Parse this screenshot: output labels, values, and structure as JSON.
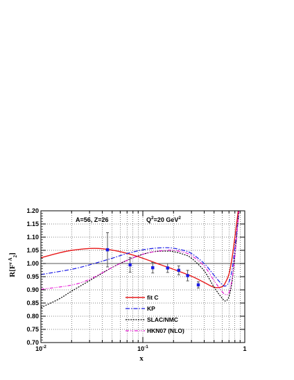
{
  "chart_data": {
    "type": "line",
    "xlabel": "x",
    "ylabel_parts": {
      "main": "R[F",
      "sub": "2",
      "sup": "ν A",
      "end": "]"
    },
    "x_scale": "log",
    "xlim": [
      0.01,
      1
    ],
    "ylim": [
      0.7,
      1.2
    ],
    "grid": true,
    "reference_line": 1.0,
    "y_ticks": [
      "0.70",
      "0.75",
      "0.80",
      "0.85",
      "0.90",
      "0.95",
      "1.00",
      "1.05",
      "1.10",
      "1.15",
      "1.20"
    ],
    "x_tick_labels": [
      {
        "x": 0.01,
        "base": "10",
        "exp": "-2"
      },
      {
        "x": 0.1,
        "base": "10",
        "exp": "-1"
      },
      {
        "x": 1,
        "base": "1",
        "exp": ""
      }
    ],
    "annotations": {
      "nucleus": "A=56, Z=26",
      "q2_main": "Q",
      "q2_sup": "2",
      "q2_rest": "=20 GeV",
      "q2_unit_sup": "2"
    },
    "legend_position": "bottom-center",
    "series": [
      {
        "name": "fit C",
        "style": "solid",
        "color": "#e8191a",
        "x": [
          0.01,
          0.015,
          0.02,
          0.03,
          0.04,
          0.06,
          0.08,
          0.1,
          0.15,
          0.2,
          0.3,
          0.4,
          0.5,
          0.6,
          0.65,
          0.7,
          0.75,
          0.8,
          0.85,
          0.9
        ],
        "y": [
          1.022,
          1.04,
          1.05,
          1.057,
          1.056,
          1.045,
          1.032,
          1.02,
          0.995,
          0.978,
          0.952,
          0.928,
          0.91,
          0.912,
          0.93,
          0.96,
          1.02,
          1.1,
          1.18,
          1.26
        ]
      },
      {
        "name": "KP",
        "style": "dashdot",
        "color": "#1a1ae6",
        "x": [
          0.01,
          0.02,
          0.03,
          0.05,
          0.07,
          0.1,
          0.13,
          0.17,
          0.2,
          0.25,
          0.3,
          0.4,
          0.5,
          0.6,
          0.65,
          0.7,
          0.75,
          0.8,
          0.85,
          0.9
        ],
        "y": [
          0.958,
          0.978,
          0.995,
          1.02,
          1.038,
          1.052,
          1.058,
          1.06,
          1.058,
          1.05,
          1.038,
          1.0,
          0.955,
          0.92,
          0.915,
          0.93,
          0.975,
          1.06,
          1.15,
          1.25
        ]
      },
      {
        "name": "SLAC/NMC",
        "style": "dotted",
        "color": "#000000",
        "x": [
          0.01,
          0.015,
          0.02,
          0.03,
          0.05,
          0.07,
          0.1,
          0.13,
          0.17,
          0.2,
          0.25,
          0.3,
          0.4,
          0.5,
          0.6,
          0.65,
          0.7,
          0.75,
          0.8,
          0.85,
          0.9
        ],
        "y": [
          0.833,
          0.865,
          0.895,
          0.935,
          0.985,
          1.012,
          1.035,
          1.045,
          1.047,
          1.045,
          1.035,
          1.02,
          0.972,
          0.91,
          0.868,
          0.858,
          0.875,
          0.93,
          1.03,
          1.14,
          1.26
        ]
      },
      {
        "name": "HKN07 (NLO)",
        "style": "dashdotdot",
        "color": "#e619d4",
        "x": [
          0.01,
          0.02,
          0.03,
          0.05,
          0.07,
          0.1,
          0.13,
          0.17,
          0.2,
          0.25,
          0.3,
          0.4,
          0.5,
          0.6,
          0.65,
          0.7,
          0.75,
          0.8,
          0.85,
          0.9
        ],
        "y": [
          0.902,
          0.918,
          0.94,
          0.985,
          1.012,
          1.035,
          1.045,
          1.05,
          1.05,
          1.043,
          1.03,
          0.99,
          0.935,
          0.893,
          0.882,
          0.89,
          0.94,
          1.03,
          1.14,
          1.25
        ]
      }
    ],
    "points": {
      "name": "data",
      "color": "#1a1ae6",
      "x": [
        0.045,
        0.075,
        0.125,
        0.175,
        0.225,
        0.275,
        0.35
      ],
      "y": [
        1.052,
        0.995,
        0.984,
        0.983,
        0.974,
        0.954,
        0.919
      ],
      "err": [
        0.065,
        0.028,
        0.02,
        0.017,
        0.017,
        0.02,
        0.012
      ]
    }
  }
}
